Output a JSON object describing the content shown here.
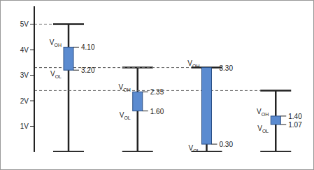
{
  "chart_data": {
    "type": "floating_bar",
    "categories": [
      null,
      null,
      null,
      null
    ],
    "series": [
      {
        "name": "VOH",
        "values": [
          4.1,
          2.35,
          3.3,
          1.4
        ],
        "value_labels": [
          "4.10",
          "2.35",
          "3.30",
          "1.40"
        ]
      },
      {
        "name": "VOL",
        "values": [
          3.2,
          1.6,
          0.3,
          1.07
        ],
        "value_labels": [
          "3.20",
          "1.60",
          "0.30",
          "1.07"
        ]
      }
    ],
    "whisker_high": [
      5,
      3.3,
      3.3,
      2.4
    ],
    "whisker_low": [
      0,
      0,
      0,
      0
    ],
    "color": "#5b8bd0",
    "ylim": [
      0,
      5.7
    ],
    "yticks": [
      {
        "value": 1,
        "label": "1V"
      },
      {
        "value": 2,
        "label": "2V"
      },
      {
        "value": 3,
        "label": "3V"
      },
      {
        "value": 4,
        "label": "4V"
      },
      {
        "value": 5,
        "label": "5V"
      }
    ],
    "grid": false
  }
}
